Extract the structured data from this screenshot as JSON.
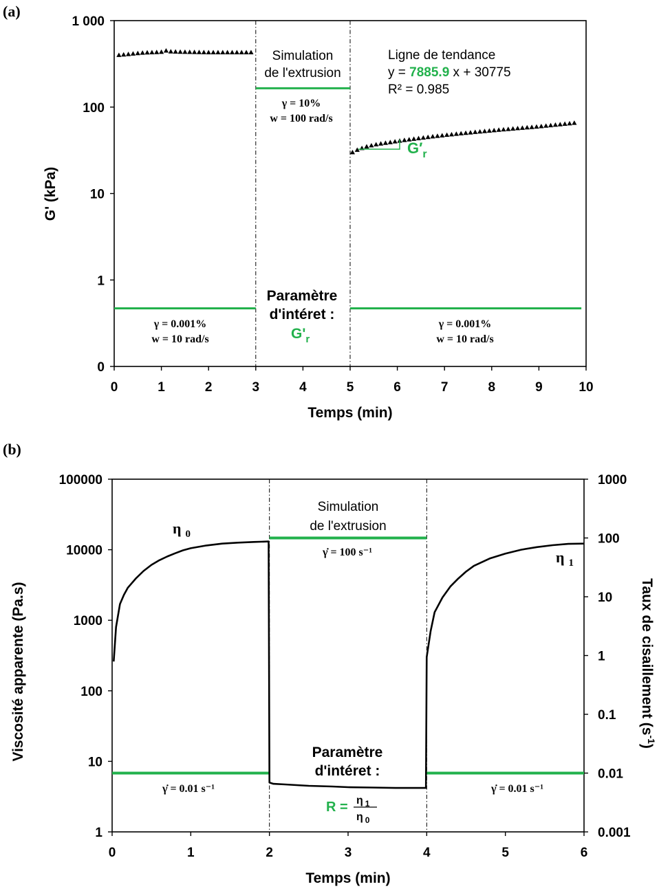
{
  "chart_data": [
    {
      "type": "scatter",
      "panel_label": "(a)",
      "xlabel": "Temps (min)",
      "ylabel": "G' (kPa)",
      "x_ticks": [
        "0",
        "1",
        "2",
        "3",
        "4",
        "5",
        "6",
        "7",
        "8",
        "9",
        "10"
      ],
      "y_ticks": [
        "0",
        "1",
        "10",
        "100",
        "1 000"
      ],
      "xlim": [
        0,
        10
      ],
      "y_scale": "log",
      "grid": false,
      "phase_boundaries": [
        3,
        5
      ],
      "series": [
        {
          "marker": "triangle",
          "color": "#000000",
          "x": [
            0.1,
            0.2,
            0.3,
            0.4,
            0.5,
            0.6,
            0.7,
            0.8,
            0.9,
            1.0,
            1.1,
            1.2,
            1.3,
            1.4,
            1.5,
            1.6,
            1.7,
            1.8,
            1.9,
            2.0,
            2.1,
            2.2,
            2.3,
            2.4,
            2.5,
            2.6,
            2.7,
            2.8,
            2.9
          ],
          "y": [
            400,
            405,
            410,
            415,
            420,
            425,
            428,
            430,
            432,
            435,
            450,
            440,
            438,
            436,
            435,
            434,
            433,
            432,
            431,
            430,
            430,
            430,
            430,
            430,
            430,
            430,
            430,
            430,
            430
          ]
        },
        {
          "marker": "triangle",
          "color": "#000000",
          "x": [
            5.05,
            5.15,
            5.25,
            5.35,
            5.45,
            5.55,
            5.65,
            5.75,
            5.85,
            5.95,
            6.05,
            6.15,
            6.25,
            6.35,
            6.45,
            6.55,
            6.65,
            6.75,
            6.85,
            6.95,
            7.05,
            7.15,
            7.25,
            7.35,
            7.45,
            7.55,
            7.65,
            7.75,
            7.85,
            7.95,
            8.05,
            8.15,
            8.25,
            8.35,
            8.45,
            8.55,
            8.65,
            8.75,
            8.85,
            8.95,
            9.05,
            9.15,
            9.25,
            9.35,
            9.45,
            9.55,
            9.65,
            9.75
          ],
          "y": [
            30,
            32,
            33.5,
            35,
            36,
            37,
            37.8,
            38.5,
            39.2,
            40,
            40.8,
            41.5,
            42.2,
            42.9,
            43.6,
            44.3,
            45,
            45.7,
            46.4,
            47,
            47.7,
            48.3,
            49,
            49.6,
            50.2,
            50.8,
            51.5,
            52.1,
            52.7,
            53.3,
            53.9,
            54.5,
            55.1,
            55.7,
            56.3,
            56.9,
            57.5,
            58.1,
            58.7,
            59.3,
            60,
            60.8,
            61.6,
            62.4,
            63.2,
            64,
            64.8,
            65.6
          ]
        }
      ],
      "phase_levels": [
        {
          "x": [
            0,
            3
          ],
          "y": 0.47,
          "color": "#22b14c"
        },
        {
          "x": [
            3,
            5
          ],
          "y": 165,
          "color": "#22b14c"
        },
        {
          "x": [
            5,
            9.9
          ],
          "y": 0.47,
          "color": "#22b14c"
        }
      ],
      "annotations": {
        "sim_line1": "Simulation",
        "sim_line2": "de l'extrusion",
        "sim_gamma": "γ = 10%",
        "sim_w": "w = 100 rad/s",
        "trend_title": "Ligne de tendance",
        "trend_prefix": "y = ",
        "trend_slope": "7885.9",
        "trend_suffix": " x + 30775",
        "trend_r2": "R² = 0.985",
        "gr_label": "G′",
        "gr_sub": "r",
        "param_line1": "Paramètre",
        "param_line2": "d'intéret :",
        "param_value": "G'",
        "param_sub": "r",
        "left_gamma": "γ = 0.001%",
        "left_w": "w = 10 rad/s",
        "right_gamma": "γ = 0.001%",
        "right_w": "w = 10 rad/s"
      }
    },
    {
      "type": "line",
      "panel_label": "(b)",
      "xlabel": "Temps (min)",
      "ylabel": "Viscosité apparente (Pa.s)",
      "y2label": "Taux de cisaillement (s",
      "y2label_sup": "-1",
      "y2label_end": ")",
      "x_ticks": [
        "0",
        "1",
        "2",
        "3",
        "4",
        "5",
        "6"
      ],
      "y_ticks": [
        "1",
        "10",
        "100",
        "1000",
        "10000",
        "100000"
      ],
      "y2_ticks": [
        "0.001",
        "0.01",
        "0.1",
        "1",
        "10",
        "100",
        "1000"
      ],
      "xlim": [
        0,
        6
      ],
      "ylim": [
        1,
        100000
      ],
      "y2lim": [
        0.001,
        1000
      ],
      "y_scale": "log",
      "grid": false,
      "phase_boundaries": [
        2,
        4
      ],
      "series": [
        {
          "color": "#000000",
          "x": [
            0.02,
            0.05,
            0.1,
            0.15,
            0.2,
            0.3,
            0.4,
            0.5,
            0.6,
            0.7,
            0.8,
            0.9,
            1.0,
            1.2,
            1.4,
            1.6,
            1.8,
            1.99,
            2.0,
            2.05,
            2.2,
            2.5,
            2.8,
            3.0,
            3.3,
            3.6,
            3.99,
            4.0,
            4.05,
            4.1,
            4.2,
            4.3,
            4.4,
            4.5,
            4.6,
            4.8,
            5.0,
            5.2,
            5.4,
            5.6,
            5.8,
            6.0
          ],
          "y": [
            260,
            800,
            1700,
            2300,
            2900,
            3900,
            5000,
            6100,
            7100,
            8000,
            8900,
            9800,
            10500,
            11500,
            12200,
            12600,
            12900,
            13100,
            5,
            4.8,
            4.7,
            4.5,
            4.4,
            4.3,
            4.25,
            4.2,
            4.2,
            300,
            700,
            1300,
            2100,
            3000,
            3900,
            4900,
            5900,
            7500,
            8800,
            10000,
            10900,
            11600,
            12100,
            12200
          ]
        }
      ],
      "phase_levels": [
        {
          "x": [
            0,
            2
          ],
          "y2": 0.01,
          "color": "#22b14c"
        },
        {
          "x": [
            2,
            4
          ],
          "y2": 100,
          "color": "#22b14c"
        },
        {
          "x": [
            4,
            6
          ],
          "y2": 0.01,
          "color": "#22b14c"
        }
      ],
      "annotations": {
        "sim_line1": "Simulation",
        "sim_line2": "de l'extrusion",
        "sim_rate": "γ̇ = 100 s⁻¹",
        "eta0": "η",
        "eta0_sub": "0",
        "eta1": "η",
        "eta1_sub": "1",
        "param_line1": "Paramètre",
        "param_line2": "d'intéret :",
        "r_prefix": "R =",
        "r_num": "η",
        "r_num_sub": "1",
        "r_den": "η",
        "r_den_sub": "0",
        "left_rate": "γ̇ = 0.01 s⁻¹",
        "right_rate": "γ̇ = 0.01 s⁻¹"
      }
    }
  ]
}
